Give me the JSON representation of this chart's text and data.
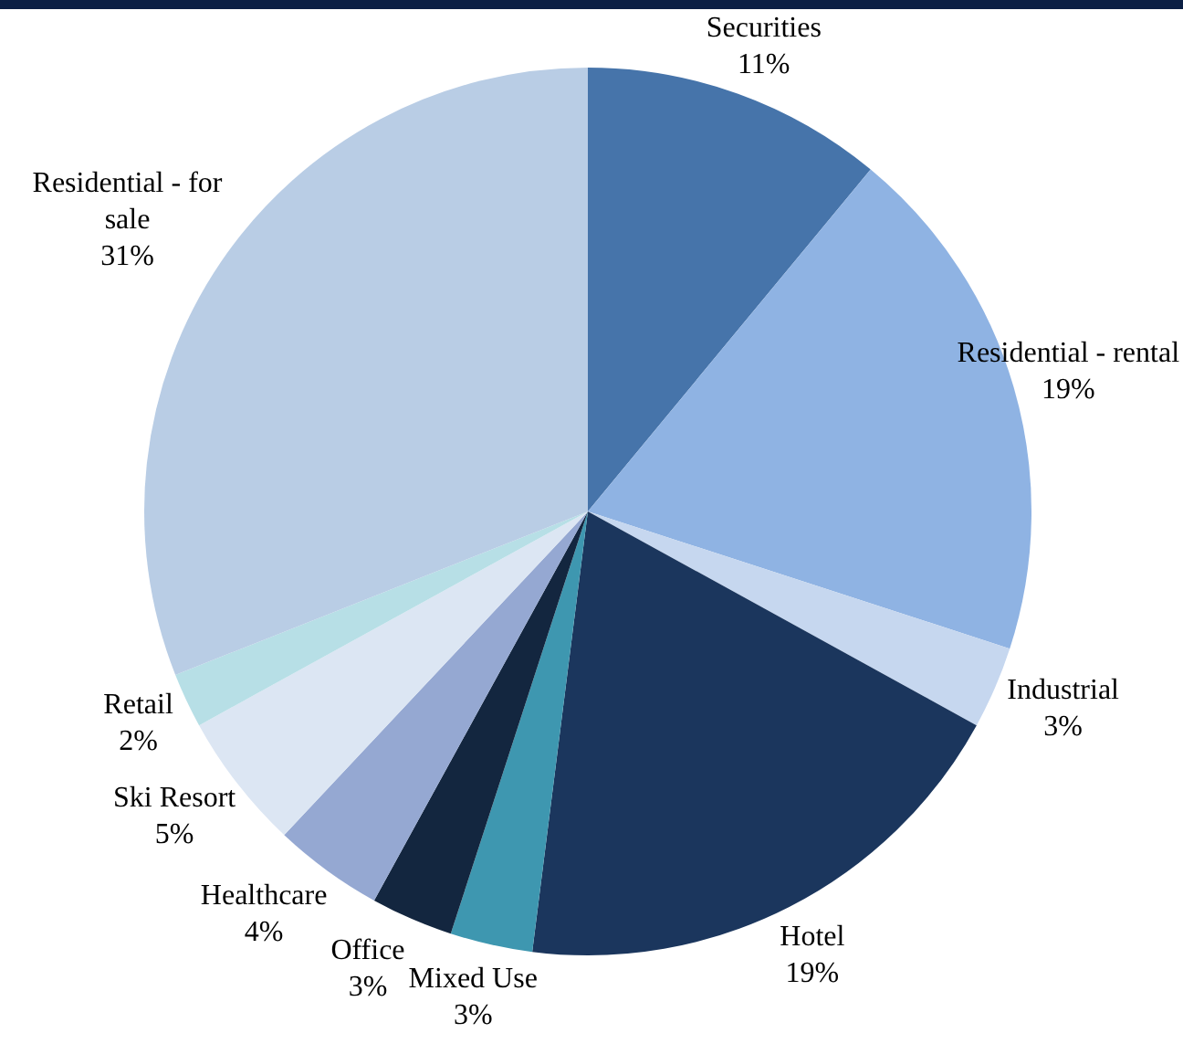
{
  "chart_data": {
    "type": "pie",
    "categories": [
      "Securities",
      "Residential - rental",
      "Industrial",
      "Hotel",
      "Mixed Use",
      "Office",
      "Healthcare",
      "Ski Resort",
      "Retail",
      "Residential - for sale"
    ],
    "values": [
      11,
      19,
      3,
      19,
      3,
      3,
      4,
      5,
      2,
      31
    ],
    "value_labels": [
      "11%",
      "19%",
      "3%",
      "19%",
      "3%",
      "3%",
      "4%",
      "5%",
      "2%",
      "31%"
    ],
    "colors": [
      "#4674aa",
      "#8fb3e3",
      "#c6d7ef",
      "#1b365d",
      "#3e97b0",
      "#13263f",
      "#95a8d2",
      "#dce6f3",
      "#b7dfe6",
      "#b9cde5"
    ],
    "legend": false
  }
}
